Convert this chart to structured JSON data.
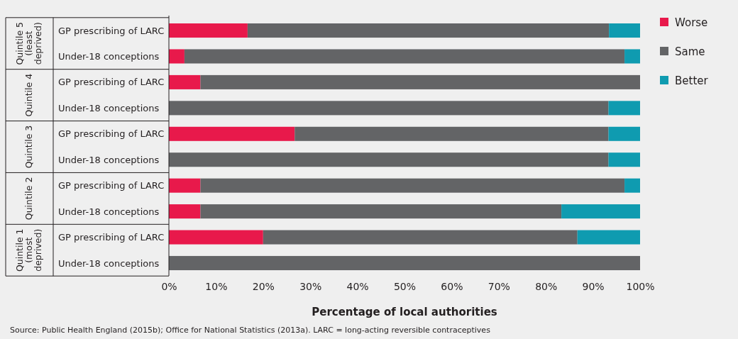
{
  "chart_data": {
    "type": "bar",
    "orientation": "horizontal",
    "stacked": true,
    "categories": [
      "GP prescribing of LARC",
      "Under-18 conceptions",
      "GP prescribing of LARC",
      "Under-18 conceptions",
      "GP prescribing of LARC",
      "Under-18 conceptions",
      "GP prescribing of LARC",
      "Under-18 conceptions",
      "GP prescribing of LARC",
      "Under-18 conceptions"
    ],
    "series": [
      {
        "name": "Worse",
        "color": "#e8194b",
        "values": [
          16.7,
          3.3,
          6.7,
          0,
          26.7,
          0,
          6.7,
          6.7,
          20,
          0
        ]
      },
      {
        "name": "Same",
        "color": "#636466",
        "values": [
          76.7,
          93.4,
          93.3,
          93.3,
          66.6,
          93.3,
          90,
          76.6,
          66.7,
          100
        ]
      },
      {
        "name": "Better",
        "color": "#0f9bb0",
        "values": [
          6.6,
          3.3,
          0,
          6.7,
          6.7,
          6.7,
          3.3,
          16.7,
          13.3,
          0
        ]
      }
    ],
    "xlim": [
      0,
      100
    ],
    "xticks": [
      {
        "value": 0,
        "label": "0%"
      },
      {
        "value": 10,
        "label": "10%"
      },
      {
        "value": 20,
        "label": "20%"
      },
      {
        "value": 30,
        "label": "30%"
      },
      {
        "value": 40,
        "label": "40%"
      },
      {
        "value": 50,
        "label": "50%"
      },
      {
        "value": 60,
        "label": "60%"
      },
      {
        "value": 70,
        "label": "70%"
      },
      {
        "value": 80,
        "label": "80%"
      },
      {
        "value": 90,
        "label": "90%"
      },
      {
        "value": 100,
        "label": "100%"
      }
    ],
    "xlabel": "Percentage of local authorities",
    "legend": "right",
    "grid": false,
    "annotations": [
      "Quintile 5 (least deprived)",
      "Quintile 4",
      "Quintile 3",
      "Quintile 2",
      "Quintile 1 (most deprived)",
      "Source: Public Health England (2015b); Office for National Statistics (2013a). LARC = long-acting reversible contraceptives"
    ]
  }
}
